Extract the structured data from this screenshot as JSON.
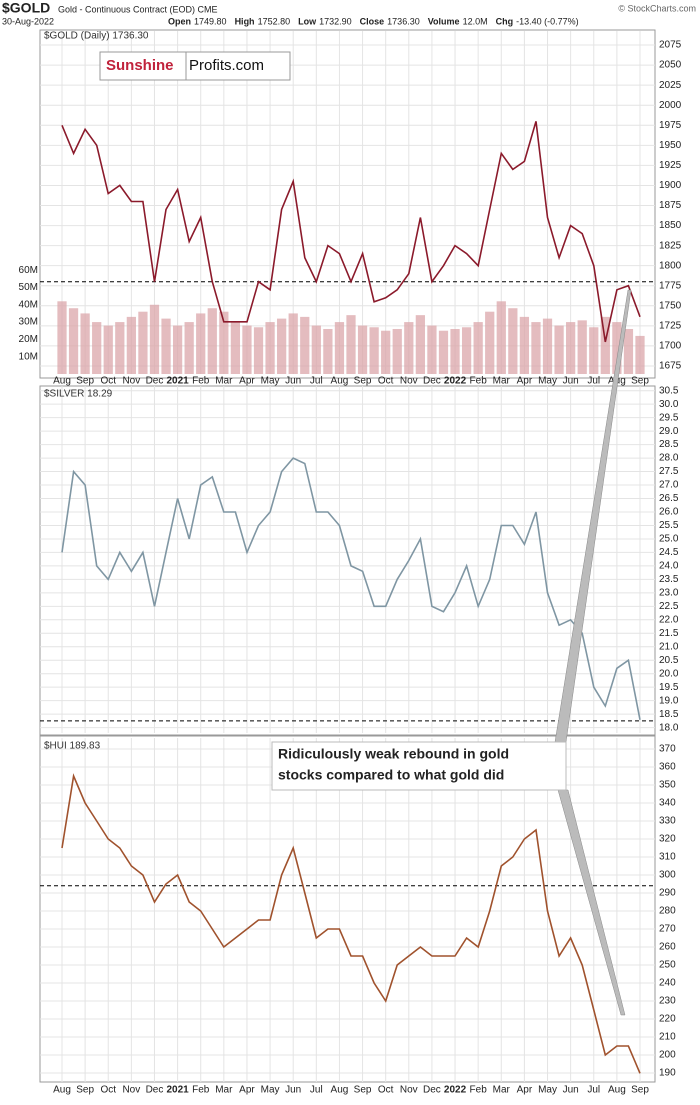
{
  "header": {
    "symbol": "$GOLD",
    "description": "Gold - Continuous Contract (EOD) CME",
    "date": "30-Aug-2022",
    "copyright": "© StockCharts.com",
    "quote": [
      {
        "label": "Open",
        "value": "1749.80"
      },
      {
        "label": "High",
        "value": "1752.80"
      },
      {
        "label": "Low",
        "value": "1732.90"
      },
      {
        "label": "Close",
        "value": "1736.30"
      },
      {
        "label": "Volume",
        "value": "12.0M"
      },
      {
        "label": "Chg",
        "value": "-13.40 (-0.77%)"
      }
    ]
  },
  "logo": {
    "part1": "Sunshine",
    "part2": "Profits.com"
  },
  "annotation": {
    "lines": [
      "Ridiculously weak rebound in gold",
      "stocks compared to what gold did"
    ]
  },
  "chart_data": [
    {
      "type": "line",
      "title": "$GOLD (Daily) 1736.30",
      "categories": [
        "Aug",
        null,
        "Sep",
        null,
        "Oct",
        null,
        "Nov",
        null,
        "Dec",
        null,
        "2021",
        null,
        "Feb",
        null,
        "Mar",
        null,
        "Apr",
        null,
        "May",
        null,
        "Jun",
        null,
        "Jul",
        null,
        "Aug",
        null,
        "Sep",
        null,
        "Oct",
        null,
        "Nov",
        null,
        "Dec",
        null,
        "2022",
        null,
        "Feb",
        null,
        "Mar",
        null,
        "Apr",
        null,
        "May",
        null,
        "Jun",
        null,
        "Jul",
        null,
        "Aug",
        null,
        "Sep"
      ],
      "series": [
        {
          "name": "$GOLD",
          "color": "#8b1a2b",
          "values": [
            1975,
            1940,
            1970,
            1950,
            1890,
            1900,
            1880,
            1880,
            1780,
            1870,
            1895,
            1830,
            1860,
            1780,
            1730,
            1730,
            1730,
            1780,
            1770,
            1870,
            1905,
            1810,
            1780,
            1825,
            1815,
            1780,
            1815,
            1755,
            1760,
            1770,
            1790,
            1860,
            1780,
            1800,
            1825,
            1815,
            1800,
            1870,
            1940,
            1920,
            1930,
            1980,
            1860,
            1810,
            1850,
            1840,
            1800,
            1705,
            1770,
            1775,
            1736.3
          ]
        },
        {
          "name": "Volume",
          "color": "#dba5aa",
          "axis": "y2",
          "values": [
            42,
            38,
            35,
            30,
            28,
            30,
            33,
            36,
            40,
            32,
            28,
            30,
            35,
            38,
            36,
            30,
            28,
            27,
            30,
            32,
            35,
            33,
            28,
            26,
            30,
            34,
            28,
            27,
            25,
            26,
            30,
            34,
            28,
            25,
            26,
            27,
            30,
            36,
            42,
            38,
            33,
            30,
            32,
            28,
            30,
            31,
            27,
            33,
            30,
            26,
            22
          ]
        }
      ],
      "ylim": [
        1665,
        2090
      ],
      "yticks": [
        1675,
        1700,
        1725,
        1750,
        1775,
        1800,
        1825,
        1850,
        1875,
        1900,
        1925,
        1950,
        1975,
        2000,
        2025,
        2050,
        2075
      ],
      "y2lim": [
        0,
        197
      ],
      "y2ticks": [
        {
          "value": 10,
          "label": "10M"
        },
        {
          "value": 20,
          "label": "20M"
        },
        {
          "value": 30,
          "label": "30M"
        },
        {
          "value": 40,
          "label": "40M"
        },
        {
          "value": 50,
          "label": "50M"
        },
        {
          "value": 60,
          "label": "60M"
        }
      ],
      "reference_line": 1780,
      "grid": true
    },
    {
      "type": "line",
      "title": "$SILVER 18.29",
      "series": [
        {
          "name": "$SILVER",
          "color": "#7f96a3",
          "values": [
            24.5,
            27.5,
            27.0,
            24.0,
            23.5,
            24.5,
            23.8,
            24.5,
            22.5,
            24.5,
            26.5,
            25.0,
            27.0,
            27.3,
            26.0,
            26.0,
            24.5,
            25.5,
            26.0,
            27.5,
            28.0,
            27.8,
            26.0,
            26.0,
            25.5,
            24.0,
            23.8,
            22.5,
            22.5,
            23.5,
            24.2,
            25.0,
            22.5,
            22.3,
            23.0,
            24.0,
            22.5,
            23.5,
            25.5,
            25.5,
            24.8,
            26.0,
            23.0,
            21.8,
            22.0,
            21.5,
            19.5,
            18.8,
            20.2,
            20.5,
            18.29
          ]
        }
      ],
      "ylim": [
        17.8,
        30.6
      ],
      "yticks": [
        {
          "value": 18,
          "label": "18.0"
        },
        18.5,
        {
          "value": 19,
          "label": "19.0"
        },
        19.5,
        {
          "value": 20,
          "label": "20.0"
        },
        20.5,
        {
          "value": 21,
          "label": "21.0"
        },
        21.5,
        {
          "value": 22,
          "label": "22.0"
        },
        22.5,
        {
          "value": 23,
          "label": "23.0"
        },
        23.5,
        {
          "value": 24,
          "label": "24.0"
        },
        24.5,
        {
          "value": 25,
          "label": "25.0"
        },
        25.5,
        {
          "value": 26,
          "label": "26.0"
        },
        26.5,
        {
          "value": 27,
          "label": "27.0"
        },
        27.5,
        {
          "value": 28,
          "label": "28.0"
        },
        28.5,
        {
          "value": 29,
          "label": "29.0"
        },
        29.5,
        {
          "value": 30,
          "label": "30.0"
        },
        30.5
      ],
      "reference_line": 18.25,
      "grid": true
    },
    {
      "type": "line",
      "title": "$HUI 189.83",
      "categories": [
        "Aug",
        null,
        "Sep",
        null,
        "Oct",
        null,
        "Nov",
        null,
        "Dec",
        null,
        "2021",
        null,
        "Feb",
        null,
        "Mar",
        null,
        "Apr",
        null,
        "May",
        null,
        "Jun",
        null,
        "Jul",
        null,
        "Aug",
        null,
        "Sep",
        null,
        "Oct",
        null,
        "Nov",
        null,
        "Dec",
        null,
        "2022",
        null,
        "Feb",
        null,
        "Mar",
        null,
        "Apr",
        null,
        "May",
        null,
        "Jun",
        null,
        "Jul",
        null,
        "Aug",
        null,
        "Sep"
      ],
      "series": [
        {
          "name": "$HUI",
          "color": "#a0522d",
          "values": [
            315,
            355,
            340,
            330,
            320,
            315,
            305,
            300,
            285,
            295,
            300,
            285,
            280,
            270,
            260,
            265,
            270,
            275,
            275,
            300,
            315,
            290,
            265,
            270,
            270,
            255,
            255,
            240,
            230,
            250,
            255,
            260,
            255,
            255,
            255,
            265,
            260,
            280,
            305,
            310,
            320,
            325,
            280,
            255,
            265,
            250,
            225,
            200,
            205,
            205,
            189.83
          ]
        }
      ],
      "ylim": [
        185,
        375
      ],
      "yticks": [
        190,
        200,
        210,
        220,
        230,
        240,
        250,
        260,
        270,
        280,
        290,
        300,
        310,
        320,
        330,
        340,
        350,
        360,
        370
      ],
      "reference_line": 294,
      "grid": true
    }
  ]
}
